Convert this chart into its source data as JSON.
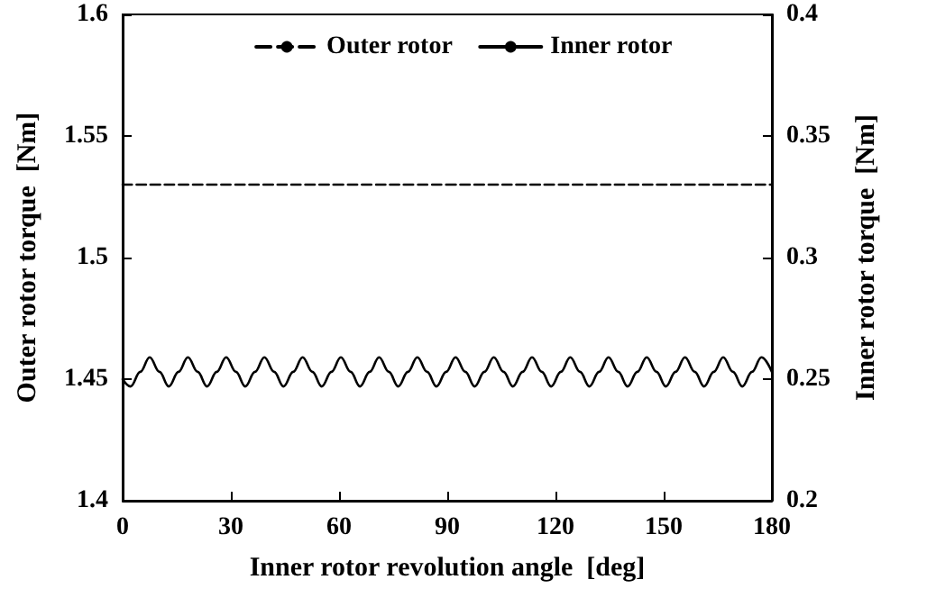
{
  "chart_data": {
    "type": "line",
    "xlabel": "Inner rotor revolution angle  [deg]",
    "ylabel": "Outer rotor torque  [Nm]",
    "y2label": "Inner rotor torque  [Nm]",
    "xlim": [
      0,
      180
    ],
    "xticks": [
      0,
      30,
      60,
      90,
      120,
      150,
      180
    ],
    "ylim": [
      1.4,
      1.6
    ],
    "yticks": [
      1.4,
      1.45,
      1.5,
      1.55,
      1.6
    ],
    "y2lim": [
      0.2,
      0.4
    ],
    "y2ticks": [
      0.2,
      0.25,
      0.3,
      0.35,
      0.4
    ],
    "grid": false,
    "legend": "top",
    "marker": "none",
    "series": [
      {
        "name": "Outer rotor",
        "color": "#000000",
        "line_style": "dashed",
        "x": [
          0,
          30,
          60,
          90,
          120,
          150,
          180
        ],
        "values": [
          1.53,
          1.53,
          1.53,
          1.53,
          1.53,
          1.53,
          1.53
        ]
      },
      {
        "name": "Inner rotor",
        "color": "#000000",
        "line_style": "solid",
        "axis": "y2",
        "x": [
          0,
          2.2,
          4.9,
          7.5,
          10.2,
          12.8,
          15.5,
          18.1,
          20.8,
          23.4,
          26.1,
          28.7,
          31.4,
          34.0,
          36.7,
          39.3,
          42.0,
          44.6,
          47.3,
          49.9,
          52.6,
          55.2,
          57.9,
          60.5,
          63.2,
          65.8,
          68.5,
          71.1,
          73.8,
          76.4,
          79.1,
          81.7,
          84.4,
          87.0,
          89.7,
          92.3,
          95.0,
          97.6,
          100.3,
          102.9,
          105.6,
          108.2,
          110.9,
          113.5,
          116.2,
          118.8,
          121.5,
          124.1,
          126.8,
          129.4,
          132.1,
          134.7,
          137.4,
          140.0,
          142.7,
          145.3,
          148.0,
          150.6,
          153.3,
          155.9,
          158.6,
          161.2,
          163.9,
          166.5,
          169.2,
          171.8,
          174.5,
          177.1,
          180
        ],
        "values": [
          0.25,
          0.247,
          0.253,
          0.259,
          0.253,
          0.247,
          0.253,
          0.259,
          0.253,
          0.247,
          0.253,
          0.259,
          0.253,
          0.247,
          0.253,
          0.259,
          0.253,
          0.247,
          0.253,
          0.259,
          0.253,
          0.247,
          0.253,
          0.259,
          0.253,
          0.247,
          0.253,
          0.259,
          0.253,
          0.247,
          0.253,
          0.259,
          0.253,
          0.247,
          0.253,
          0.259,
          0.253,
          0.247,
          0.253,
          0.259,
          0.253,
          0.247,
          0.253,
          0.259,
          0.253,
          0.247,
          0.253,
          0.259,
          0.253,
          0.247,
          0.253,
          0.259,
          0.253,
          0.247,
          0.253,
          0.259,
          0.253,
          0.247,
          0.253,
          0.259,
          0.253,
          0.247,
          0.253,
          0.259,
          0.253,
          0.247,
          0.253,
          0.259,
          0.253
        ]
      }
    ]
  }
}
